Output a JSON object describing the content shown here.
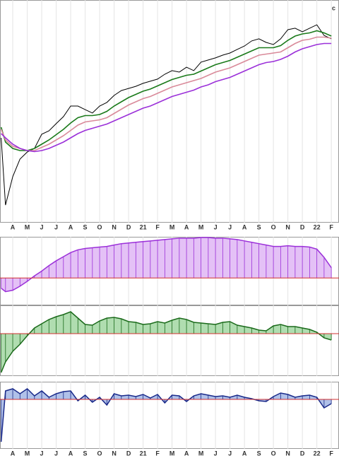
{
  "chart_data": [
    {
      "type": "line",
      "title": "c",
      "x": [
        -0.8,
        -0.5,
        0,
        0.5,
        1,
        1.5,
        2,
        2.5,
        3,
        3.5,
        4,
        4.5,
        5,
        5.5,
        6,
        6.5,
        7,
        7.5,
        8,
        8.5,
        9,
        9.5,
        10,
        10.5,
        11,
        11.5,
        12,
        12.5,
        13,
        13.5,
        14,
        14.5,
        15,
        15.5,
        16,
        16.5,
        17,
        17.5,
        18,
        18.5,
        19,
        19.5,
        20,
        20.5,
        21,
        21.5,
        22
      ],
      "xlim": [
        -0.88,
        22.53
      ],
      "ylim": [
        0,
        105
      ],
      "grid": true,
      "xticks": [
        {
          "value": 0,
          "label": "A"
        },
        {
          "value": 1,
          "label": "M"
        },
        {
          "value": 2,
          "label": "J"
        },
        {
          "value": 3,
          "label": "J"
        },
        {
          "value": 4,
          "label": "A"
        },
        {
          "value": 5,
          "label": "S"
        },
        {
          "value": 6,
          "label": "O"
        },
        {
          "value": 7,
          "label": "N"
        },
        {
          "value": 8,
          "label": "D"
        },
        {
          "value": 9,
          "label": "21"
        },
        {
          "value": 10,
          "label": "F"
        },
        {
          "value": 11,
          "label": "M"
        },
        {
          "value": 12,
          "label": "A"
        },
        {
          "value": 13,
          "label": "M"
        },
        {
          "value": 14,
          "label": "J"
        },
        {
          "value": 15,
          "label": "J"
        },
        {
          "value": 16,
          "label": "A"
        },
        {
          "value": 17,
          "label": "S"
        },
        {
          "value": 18,
          "label": "O"
        },
        {
          "value": 19,
          "label": "N"
        },
        {
          "value": 20,
          "label": "D"
        },
        {
          "value": 21,
          "label": "22"
        },
        {
          "value": 22,
          "label": "F"
        }
      ],
      "series": [
        {
          "color": "#000000",
          "values": [
            40,
            8.3,
            21.7,
            30,
            33.3,
            35,
            41.7,
            43.3,
            46.7,
            50,
            55,
            55,
            53.3,
            51.7,
            55,
            56.7,
            60,
            62.3,
            63.3,
            64.3,
            65.7,
            66.7,
            67.7,
            70,
            71.7,
            71,
            73.3,
            71.7,
            75.7,
            76.7,
            77.7,
            79,
            80,
            81.7,
            83.3,
            85.7,
            86.7,
            85,
            84,
            86.7,
            91,
            91.7,
            90,
            91.7,
            93.3,
            88.3,
            86.7
          ]
        },
        {
          "color": "#1a7a1a",
          "values": [
            45,
            38,
            35,
            34,
            34,
            35,
            37,
            39,
            41.5,
            44,
            47,
            49.5,
            50.5,
            50.5,
            51,
            52.5,
            55,
            57,
            59,
            60.5,
            62,
            63,
            64.5,
            66,
            67.5,
            68.5,
            69.5,
            70,
            71.5,
            73,
            74.5,
            75.5,
            76.5,
            78,
            79.5,
            81,
            82.5,
            82.5,
            82.5,
            83.5,
            86,
            88,
            89,
            89.5,
            90.5,
            89.5,
            88
          ]
        },
        {
          "color": "#d98a9a",
          "values": [
            44,
            39,
            36,
            35,
            34,
            34,
            35.5,
            37,
            39,
            41,
            43.5,
            46,
            47.5,
            48,
            48.5,
            49.5,
            51.5,
            53.5,
            55.5,
            57,
            58.5,
            59.5,
            61,
            62.5,
            64,
            65,
            66,
            67,
            68,
            69.5,
            71,
            72,
            73,
            74.5,
            76,
            77.5,
            79,
            79.5,
            80,
            80.5,
            82.5,
            84.5,
            86,
            86.5,
            87.5,
            87.5,
            87
          ]
        },
        {
          "color": "#9b30d9",
          "values": [
            42,
            40,
            37,
            35,
            34,
            33.5,
            34,
            35,
            36.5,
            38,
            40,
            42,
            43.5,
            44.5,
            45.5,
            46.5,
            48,
            49.5,
            51,
            52.5,
            54,
            55,
            56.5,
            58,
            59.5,
            60.5,
            61.5,
            62.5,
            64,
            65,
            66.5,
            67.5,
            68.5,
            70,
            71.5,
            73,
            74.5,
            75.5,
            76,
            77,
            78.5,
            80.5,
            82,
            83,
            84,
            84.5,
            84.5
          ]
        }
      ]
    },
    {
      "type": "area",
      "color": "#9b30d9",
      "fill": "#d9a6f2",
      "x": [
        -0.8,
        -0.5,
        0,
        0.5,
        1,
        1.5,
        2,
        2.5,
        3,
        3.5,
        4,
        4.5,
        5,
        5.5,
        6,
        6.5,
        7,
        7.5,
        8,
        8.5,
        9,
        9.5,
        10,
        10.5,
        11,
        11.5,
        12,
        12.5,
        13,
        13.5,
        14,
        14.5,
        15,
        15.5,
        16,
        16.5,
        17,
        17.5,
        18,
        18.5,
        19,
        19.5,
        20,
        20.5,
        21,
        21.5,
        22
      ],
      "xlim": [
        -0.88,
        22.53
      ],
      "ylim": [
        -4,
        6
      ],
      "values": [
        -1.5,
        -2,
        -1.8,
        -1.2,
        -0.5,
        0.3,
        1,
        1.8,
        2.5,
        3.1,
        3.7,
        4.1,
        4.3,
        4.4,
        4.5,
        4.6,
        4.8,
        5,
        5.1,
        5.2,
        5.3,
        5.4,
        5.5,
        5.6,
        5.7,
        5.8,
        5.8,
        5.8,
        5.9,
        5.9,
        5.8,
        5.8,
        5.7,
        5.6,
        5.4,
        5.2,
        5,
        4.8,
        4.6,
        4.6,
        4.7,
        4.6,
        4.6,
        4.5,
        4.2,
        3,
        1.5
      ]
    },
    {
      "type": "area",
      "color": "#1a6a1a",
      "fill": "#8fcf8f",
      "x": [
        -0.8,
        -0.5,
        0,
        0.5,
        1,
        1.5,
        2,
        2.5,
        3,
        3.5,
        4,
        4.5,
        5,
        5.5,
        6,
        6.5,
        7,
        7.5,
        8,
        8.5,
        9,
        9.5,
        10,
        10.5,
        11,
        11.5,
        12,
        12.5,
        13,
        13.5,
        14,
        14.5,
        15,
        15.5,
        16,
        16.5,
        17,
        17.5,
        18,
        18.5,
        19,
        19.5,
        20,
        20.5,
        21,
        21.5,
        22
      ],
      "xlim": [
        -0.88,
        22.53
      ],
      "ylim": [
        -6,
        4
      ],
      "values": [
        -5.5,
        -4,
        -2.5,
        -1.5,
        -0.3,
        0.8,
        1.4,
        2,
        2.4,
        2.7,
        3.1,
        2.2,
        1.3,
        1.2,
        1.8,
        2.2,
        2.3,
        2.1,
        1.7,
        1.6,
        1.3,
        1.4,
        1.7,
        1.5,
        1.9,
        2.2,
        2,
        1.6,
        1.5,
        1.4,
        1.3,
        1.6,
        1.7,
        1.2,
        1,
        0.8,
        0.5,
        0.4,
        1.1,
        1.3,
        1,
        1,
        0.8,
        0.6,
        0.2,
        -0.6,
        -0.9
      ]
    },
    {
      "type": "area",
      "color": "#1a2a8a",
      "fill": "#8fa6e0",
      "x": [
        -0.8,
        -0.5,
        0,
        0.5,
        1,
        1.5,
        2,
        2.5,
        3,
        3.5,
        4,
        4.5,
        5,
        5.5,
        6,
        6.5,
        7,
        7.5,
        8,
        8.5,
        9,
        9.5,
        10,
        10.5,
        11,
        11.5,
        12,
        12.5,
        13,
        13.5,
        14,
        14.5,
        15,
        15.5,
        16,
        16.5,
        17,
        17.5,
        18,
        18.5,
        19,
        19.5,
        20,
        20.5,
        21,
        21.5,
        22
      ],
      "xlim": [
        -0.88,
        22.53
      ],
      "ylim": [
        -7,
        2.5
      ],
      "xticks": [
        {
          "value": 0,
          "label": "A"
        },
        {
          "value": 1,
          "label": "M"
        },
        {
          "value": 2,
          "label": "J"
        },
        {
          "value": 3,
          "label": "J"
        },
        {
          "value": 4,
          "label": "A"
        },
        {
          "value": 5,
          "label": "S"
        },
        {
          "value": 6,
          "label": "O"
        },
        {
          "value": 7,
          "label": "N"
        },
        {
          "value": 8,
          "label": "D"
        },
        {
          "value": 9,
          "label": "21"
        },
        {
          "value": 10,
          "label": "F"
        },
        {
          "value": 11,
          "label": "M"
        },
        {
          "value": 12,
          "label": "A"
        },
        {
          "value": 13,
          "label": "M"
        },
        {
          "value": 14,
          "label": "J"
        },
        {
          "value": 15,
          "label": "J"
        },
        {
          "value": 16,
          "label": "A"
        },
        {
          "value": 17,
          "label": "S"
        },
        {
          "value": 18,
          "label": "O"
        },
        {
          "value": 19,
          "label": "N"
        },
        {
          "value": 20,
          "label": "D"
        },
        {
          "value": 21,
          "label": "22"
        },
        {
          "value": 22,
          "label": "F"
        }
      ],
      "values": [
        -6,
        1.2,
        1.5,
        0.8,
        1.5,
        0.5,
        1.2,
        0.3,
        0.8,
        1.1,
        1.2,
        -0.2,
        0.6,
        -0.4,
        0.3,
        -0.8,
        0.8,
        0.5,
        0.6,
        0.4,
        0.7,
        0.2,
        0.7,
        -0.5,
        0.6,
        0.5,
        -0.3,
        0.5,
        0.8,
        0.6,
        0.4,
        0.5,
        0.3,
        0.6,
        0.3,
        0.1,
        -0.2,
        -0.3,
        0.4,
        0.9,
        0.7,
        0.3,
        0.5,
        0.6,
        0.3,
        -1.2,
        -0.6
      ]
    }
  ]
}
